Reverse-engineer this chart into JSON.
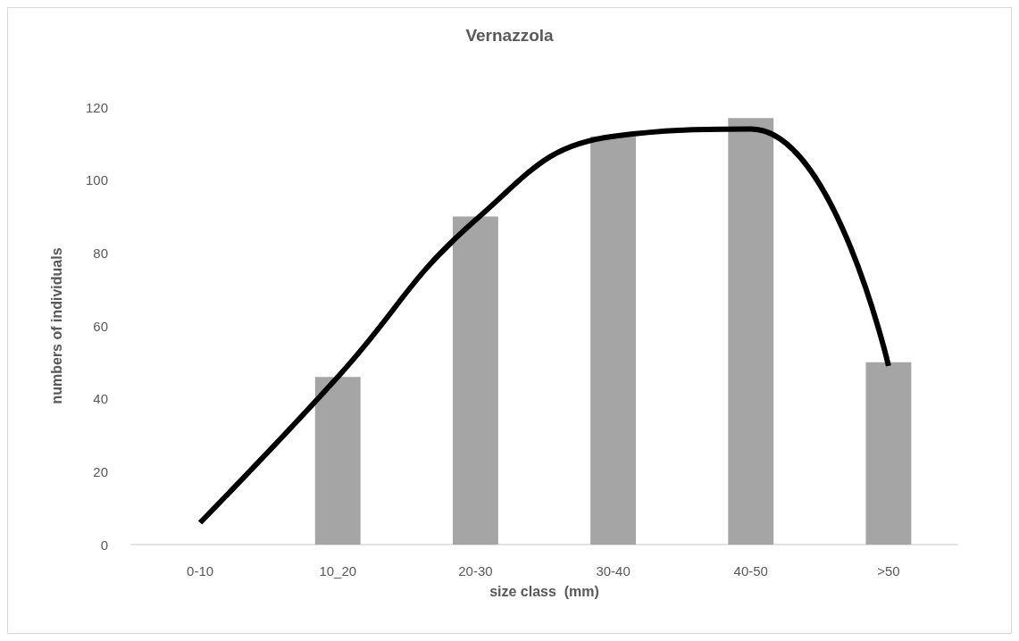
{
  "chart_data": {
    "type": "bar",
    "title": "Vernazzola",
    "xlabel": "size class  (mm)",
    "ylabel": "numbers of individuals",
    "categories": [
      "0-10",
      "10_20",
      "20-30",
      "30-40",
      "40-50",
      ">50"
    ],
    "series": [
      {
        "color": "#a5a5a5",
        "values": [
          null,
          46,
          90,
          112,
          117,
          50
        ]
      },
      {
        "type": "line",
        "color": "#000000",
        "values": [
          6,
          46,
          89,
          112,
          114,
          49
        ]
      }
    ],
    "ylim": [
      0,
      120
    ],
    "yticks": [
      0,
      20,
      40,
      60,
      80,
      100,
      120
    ],
    "grid": false,
    "marker": "none",
    "line_style": "solid"
  }
}
